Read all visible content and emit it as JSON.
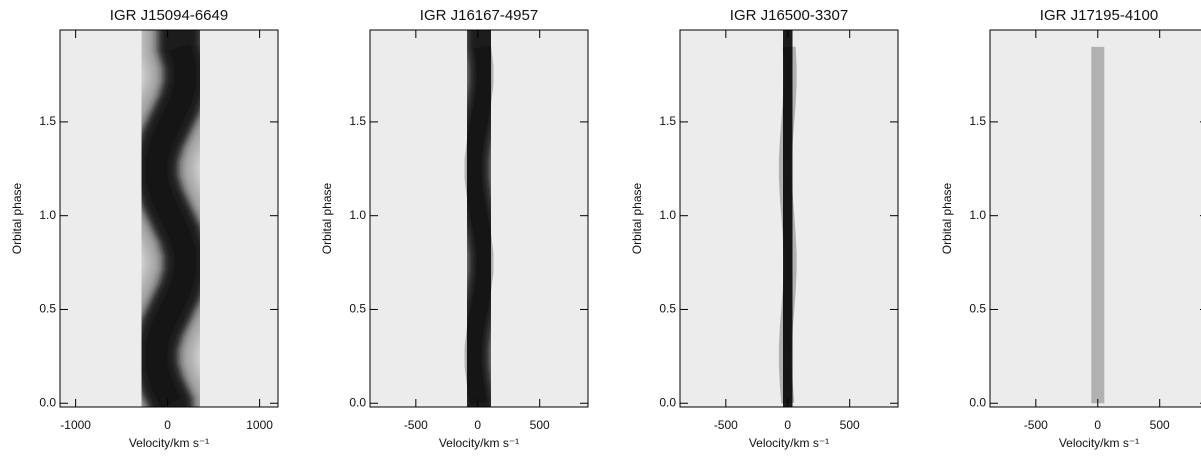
{
  "chart_data": [
    {
      "type": "trailed-spectrum",
      "title": "IGR J15094-6649",
      "xlabel": "Velocity/km s⁻¹",
      "ylabel": "Orbital phase",
      "xlim": [
        -1170,
        1200
      ],
      "xticks": [
        -1000,
        0,
        1000
      ],
      "ylim": [
        -0.02,
        1.99
      ],
      "yticks": [
        {
          "value": 0,
          "label": "0.0"
        },
        0.5,
        {
          "value": 1,
          "label": "1.0"
        },
        1.5
      ],
      "x": [
        35,
        -62,
        -122,
        -122,
        -62,
        35,
        132,
        192,
        192,
        132,
        35,
        -62,
        -122,
        -122,
        -62,
        35,
        132,
        192,
        192,
        132
      ],
      "y": [
        0,
        0.1,
        0.2,
        0.3,
        0.4,
        0.5,
        0.6,
        0.7,
        0.8,
        0.9,
        1,
        1.1,
        1.2,
        1.3,
        1.4,
        1.5,
        1.6,
        1.7,
        1.8,
        1.9
      ]
    },
    {
      "type": "trailed-spectrum",
      "title": "IGR J16167-4957",
      "xlabel": "Velocity/km s⁻¹",
      "ylabel": "Orbital phase",
      "xlim": [
        -870,
        890
      ],
      "xticks": [
        -500,
        0,
        500
      ],
      "ylim": [
        -0.02,
        1.99
      ],
      "yticks": [
        {
          "value": 0,
          "label": "0.0"
        },
        0.5,
        {
          "value": 1,
          "label": "1.0"
        },
        1.5
      ],
      "x": [
        10,
        -19,
        -38,
        -38,
        -19,
        10,
        39,
        58,
        58,
        39,
        10,
        -19,
        -38,
        -38,
        -19,
        10,
        39,
        58,
        58,
        39
      ],
      "y": [
        0,
        0.1,
        0.2,
        0.3,
        0.4,
        0.5,
        0.6,
        0.7,
        0.8,
        0.9,
        1,
        1.1,
        1.2,
        1.3,
        1.4,
        1.5,
        1.6,
        1.7,
        1.8,
        1.9
      ]
    },
    {
      "type": "trailed-spectrum",
      "title": "IGR J16500-3307",
      "xlabel": "Velocity/km s⁻¹",
      "ylabel": "Orbital phase",
      "xlim": [
        -870,
        890
      ],
      "xticks": [
        -500,
        0,
        500
      ],
      "ylim": [
        -0.02,
        1.99
      ],
      "yticks": [
        {
          "value": 0,
          "label": "0.0"
        },
        0.5,
        {
          "value": 1,
          "label": "1.0"
        },
        1.5
      ],
      "x": [
        0,
        -12,
        -19,
        -19,
        -12,
        0,
        12,
        19,
        19,
        12,
        0,
        -12,
        -19,
        -19,
        -12,
        0,
        12,
        19,
        19,
        12
      ],
      "y": [
        0,
        0.1,
        0.2,
        0.3,
        0.4,
        0.5,
        0.6,
        0.7,
        0.8,
        0.9,
        1,
        1.1,
        1.2,
        1.3,
        1.4,
        1.5,
        1.6,
        1.7,
        1.8,
        1.9
      ]
    },
    {
      "type": "trailed-spectrum",
      "title": "IGR J17195-4100",
      "xlabel": "Velocity/km s⁻¹",
      "ylabel": "Orbital phase",
      "xlim": [
        -870,
        890
      ],
      "xticks": [
        -500,
        0,
        500
      ],
      "ylim": [
        -0.02,
        1.99
      ],
      "yticks": [
        {
          "value": 0,
          "label": "0.0"
        },
        0.5,
        {
          "value": 1,
          "label": "1.0"
        },
        1.5
      ],
      "x": [
        0,
        0,
        0,
        0,
        0,
        0,
        0,
        0,
        0,
        0,
        0,
        0,
        0,
        0,
        0,
        0,
        0,
        0,
        0,
        0
      ],
      "y": [
        0,
        0.1,
        0.2,
        0.3,
        0.4,
        0.5,
        0.6,
        0.7,
        0.8,
        0.9,
        1,
        1.1,
        1.2,
        1.3,
        1.4,
        1.5,
        1.6,
        1.7,
        1.8,
        1.9
      ]
    }
  ]
}
